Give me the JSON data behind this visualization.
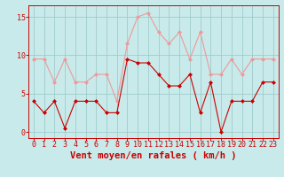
{
  "x": [
    0,
    1,
    2,
    3,
    4,
    5,
    6,
    7,
    8,
    9,
    10,
    11,
    12,
    13,
    14,
    15,
    16,
    17,
    18,
    19,
    20,
    21,
    22,
    23
  ],
  "wind_mean": [
    4,
    2.5,
    4,
    0.5,
    4,
    4,
    4,
    2.5,
    2.5,
    9.5,
    9,
    9,
    7.5,
    6,
    6,
    7.5,
    2.5,
    6.5,
    0,
    4,
    4,
    4,
    6.5,
    6.5
  ],
  "wind_gust": [
    9.5,
    9.5,
    6.5,
    9.5,
    6.5,
    6.5,
    7.5,
    7.5,
    4,
    11.5,
    15,
    15.5,
    13,
    11.5,
    13,
    9.5,
    13,
    7.5,
    7.5,
    9.5,
    7.5,
    9.5,
    9.5,
    9.5
  ],
  "bg_color": "#c8eaea",
  "grid_color": "#a0cccc",
  "line_mean_color": "#cc0000",
  "line_gust_color": "#ee9999",
  "marker_size": 2.0,
  "xlabel": "Vent moyen/en rafales ( km/h )",
  "yticks": [
    0,
    5,
    10,
    15
  ],
  "xticks": [
    0,
    1,
    2,
    3,
    4,
    5,
    6,
    7,
    8,
    9,
    10,
    11,
    12,
    13,
    14,
    15,
    16,
    17,
    18,
    19,
    20,
    21,
    22,
    23
  ],
  "ylim": [
    -0.8,
    16.5
  ],
  "xlim": [
    -0.5,
    23.5
  ],
  "xlabel_color": "#cc0000",
  "tick_color": "#cc0000",
  "axis_line_color": "#cc0000",
  "xlabel_fontsize": 7.5,
  "tick_fontsize": 6.0,
  "linewidth": 0.8
}
